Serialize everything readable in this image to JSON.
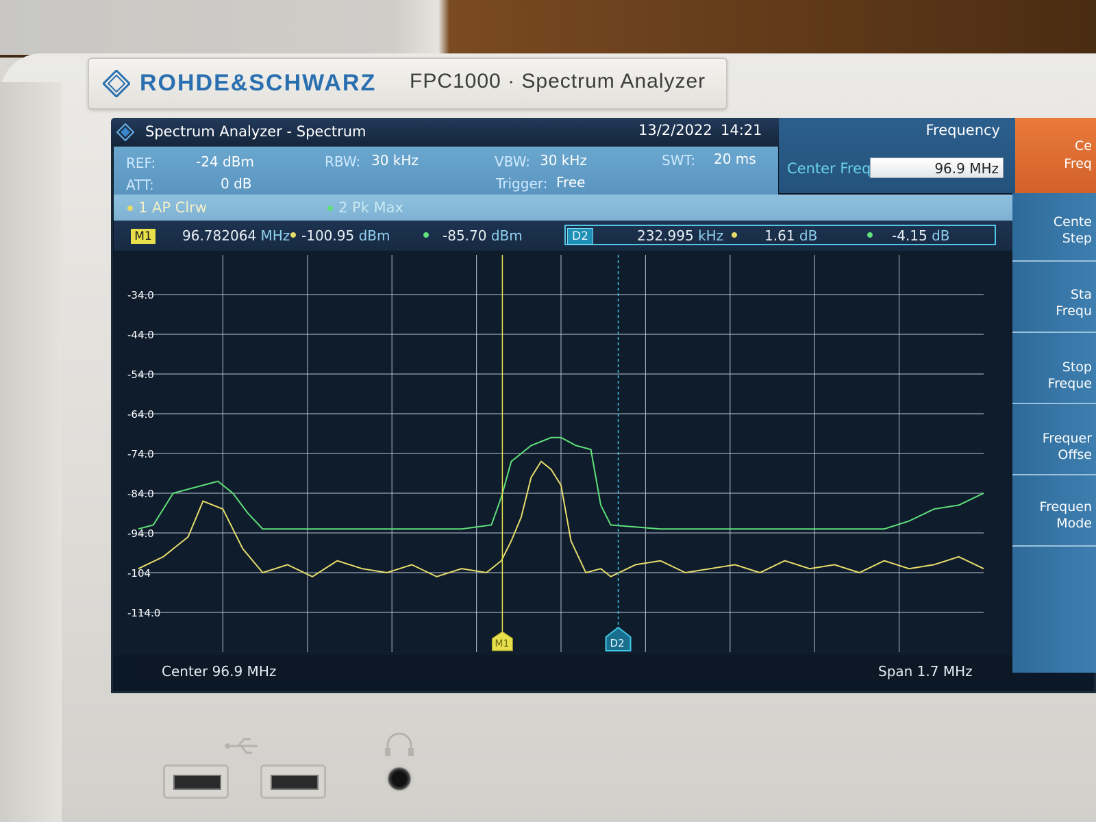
{
  "brand": {
    "name": "ROHDE&SCHWARZ",
    "model": "FPC1000 · Spectrum Analyzer"
  },
  "titlebar": {
    "title": "Spectrum Analyzer - Spectrum",
    "date": "13/2/2022",
    "time": "14:21"
  },
  "params": {
    "ref_label": "REF:",
    "ref_value": "-24 dBm",
    "att_label": "ATT:",
    "att_value": "0 dB",
    "rbw_label": "RBW:",
    "rbw_value": "30 kHz",
    "vbw_label": "VBW:",
    "vbw_value": "30 kHz",
    "trigger_label": "Trigger:",
    "trigger_value": "Free",
    "swt_label": "SWT:",
    "swt_value": "20 ms"
  },
  "softkey_header": {
    "menu_label": "Frequency",
    "center_freq_label": "Center Freq",
    "center_freq_value": "96.9 MHz"
  },
  "orange_key": {
    "line1": "Ce",
    "line2": "Freq"
  },
  "traces": {
    "trace1": "1 AP Clrw",
    "trace2": "2 Pk Max"
  },
  "markers": {
    "m1_badge": "M1",
    "m1_freq": "96.782064",
    "m1_freq_unit": "MHz",
    "m1_level1": "-100.95",
    "m1_level1_unit": "dBm",
    "m1_level2": "-85.70",
    "m1_level2_unit": "dBm",
    "d2_badge": "D2",
    "d2_freq": "232.995",
    "d2_freq_unit": "kHz",
    "d2_level1": "1.61",
    "d2_level1_unit": "dB",
    "d2_level2": "-4.15",
    "d2_level2_unit": "dB"
  },
  "plot": {
    "y_tick_labels": [
      "-34.0",
      "-44.0",
      "-54.0",
      "-64.0",
      "-74.0",
      "-84.0",
      "-94.0",
      "-104",
      "-114.0"
    ],
    "marker_m1_label": "M1",
    "marker_d2_label": "D2"
  },
  "bottom": {
    "center": "Center 96.9 MHz",
    "span": "Span 1.7 MHz"
  },
  "softkeys": [
    {
      "line1": "Cente",
      "line2": "Step"
    },
    {
      "line1": "Sta",
      "line2": "Frequ"
    },
    {
      "line1": "Stop",
      "line2": "Freque"
    },
    {
      "line1": "Frequer",
      "line2": "Offse"
    },
    {
      "line1": "Frequen",
      "line2": "Mode"
    }
  ],
  "colors": {
    "trace_yellow": "#e6dc6a",
    "trace_green": "#5fe07a",
    "grid": "#c8d4e2",
    "marker_m1": "#e8e04a",
    "marker_d2": "#40c8e8"
  },
  "chart_data": {
    "type": "line",
    "title": "",
    "xlabel": "",
    "ylabel": "",
    "x_center_mhz": 96.9,
    "x_span_mhz": 1.7,
    "xlim": [
      96.05,
      97.75
    ],
    "ylim": [
      -124,
      -24
    ],
    "y_ticks": [
      -34,
      -44,
      -54,
      -64,
      -74,
      -84,
      -94,
      -104,
      -114
    ],
    "grid": true,
    "series": [
      {
        "name": "1 AP Clrw",
        "color": "#e6dc6a",
        "x": [
          96.05,
          96.1,
          96.15,
          96.18,
          96.22,
          96.26,
          96.3,
          96.35,
          96.4,
          96.45,
          96.5,
          96.55,
          96.6,
          96.65,
          96.7,
          96.75,
          96.78,
          96.8,
          96.82,
          96.84,
          96.86,
          96.88,
          96.9,
          96.92,
          96.95,
          96.98,
          97.0,
          97.05,
          97.1,
          97.15,
          97.2,
          97.25,
          97.3,
          97.35,
          97.4,
          97.45,
          97.5,
          97.55,
          97.6,
          97.65,
          97.7,
          97.75
        ],
        "y": [
          -103,
          -100,
          -95,
          -86,
          -88,
          -98,
          -104,
          -102,
          -105,
          -101,
          -103,
          -104,
          -102,
          -105,
          -103,
          -104,
          -101,
          -96,
          -90,
          -80,
          -76,
          -78,
          -82,
          -96,
          -104,
          -103,
          -105,
          -102,
          -101,
          -104,
          -103,
          -102,
          -104,
          -101,
          -103,
          -102,
          -104,
          -101,
          -103,
          -102,
          -100,
          -103
        ]
      },
      {
        "name": "2 Pk Max",
        "color": "#5fe07a",
        "x": [
          96.05,
          96.08,
          96.12,
          96.15,
          96.18,
          96.21,
          96.24,
          96.27,
          96.3,
          96.4,
          96.5,
          96.6,
          96.7,
          96.76,
          96.78,
          96.8,
          96.84,
          96.88,
          96.9,
          96.93,
          96.96,
          96.98,
          97.0,
          97.1,
          97.2,
          97.3,
          97.4,
          97.5,
          97.55,
          97.6,
          97.65,
          97.7,
          97.75
        ],
        "y": [
          -93,
          -92,
          -84,
          -83,
          -82,
          -81,
          -84,
          -89,
          -93,
          -93,
          -93,
          -93,
          -93,
          -92,
          -85,
          -76,
          -72,
          -70,
          -70,
          -72,
          -73,
          -87,
          -92,
          -93,
          -93,
          -93,
          -93,
          -93,
          -93,
          -91,
          -88,
          -87,
          -84
        ]
      }
    ],
    "markers": [
      {
        "name": "M1",
        "x_mhz": 96.782064,
        "level_dbm": -100.95
      },
      {
        "name": "D2",
        "delta_khz": 232.995,
        "delta_db": 1.61
      }
    ]
  }
}
